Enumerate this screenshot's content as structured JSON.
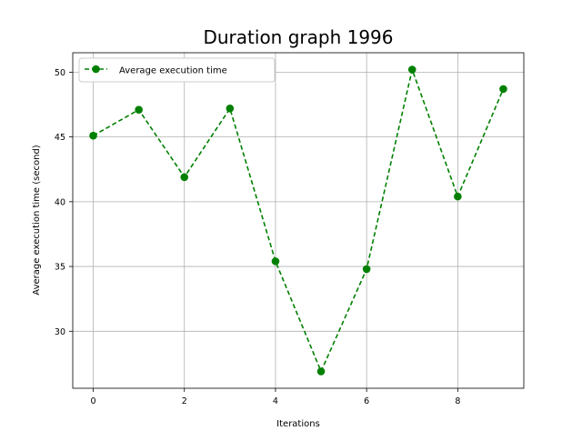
{
  "chart_data": {
    "type": "line",
    "title": "Duration graph 1996",
    "xlabel": "Iterations",
    "ylabel": "Average execution time (second)",
    "x": [
      0,
      1,
      2,
      3,
      4,
      5,
      6,
      7,
      8,
      9
    ],
    "series": [
      {
        "name": "Average execution time",
        "values": [
          45.1,
          47.1,
          41.9,
          47.2,
          35.4,
          26.9,
          34.8,
          50.2,
          40.4,
          48.7
        ],
        "color": "#008000",
        "line_style": "dashed",
        "marker": "circle"
      }
    ],
    "xlim": [
      -0.45,
      9.45
    ],
    "ylim": [
      25.6,
      51.5
    ],
    "xticks": [
      0,
      2,
      4,
      6,
      8
    ],
    "yticks": [
      30,
      35,
      40,
      45,
      50
    ],
    "xtick_labels": [
      "0",
      "2",
      "4",
      "6",
      "8"
    ],
    "ytick_labels": [
      "30",
      "35",
      "40",
      "45",
      "50"
    ],
    "grid": true,
    "legend_position": "top-left"
  }
}
